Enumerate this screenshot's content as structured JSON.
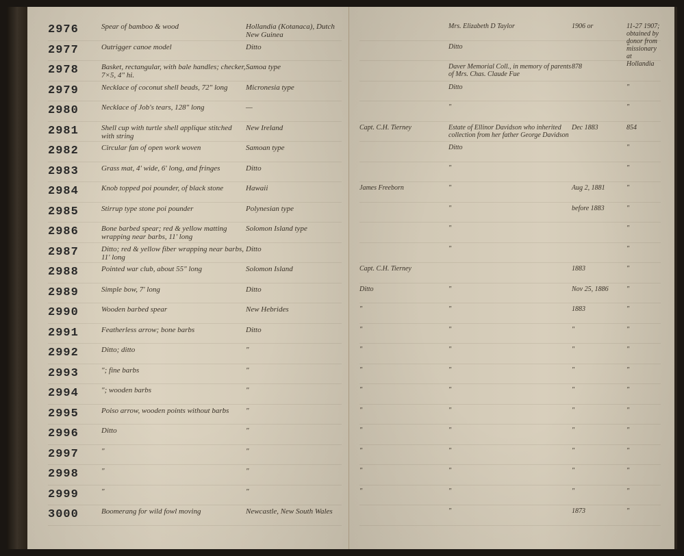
{
  "ledger": {
    "rows": [
      {
        "num": "2976",
        "desc": "Spear of bamboo & wood",
        "loc": "Hollandia (Kotanaca), Dutch New Guinea",
        "r1": "",
        "r2": "Mrs. Elizabeth D Taylor",
        "r3": "1906 or",
        "r4": "11-27 1907; obtained by donor from missionary at Hollandia"
      },
      {
        "num": "2977",
        "desc": "Outrigger canoe model",
        "loc": "Ditto",
        "r1": "",
        "r2": "Ditto",
        "r3": "",
        "r4": "\""
      },
      {
        "num": "2978",
        "desc": "Basket, rectangular, with bale handles; checker, 7×5, 4\" hi.",
        "loc": "Samoa type",
        "r1": "",
        "r2": "Daver Memorial Coll., in memory of parents of Mrs. Chas. Claude Fue",
        "r3": "878",
        "r4": ""
      },
      {
        "num": "2979",
        "desc": "Necklace of coconut shell beads, 72\" long",
        "loc": "Micronesia type",
        "r1": "",
        "r2": "Ditto",
        "r3": "",
        "r4": "\""
      },
      {
        "num": "2980",
        "desc": "Necklace of Job's tears, 128\" long",
        "loc": "—",
        "r1": "",
        "r2": "\"",
        "r3": "",
        "r4": "\""
      },
      {
        "num": "2981",
        "desc": "Shell cup with turtle shell applique stitched with string",
        "loc": "New Ireland",
        "r1": "Capt. C.H. Tierney",
        "r2": "Estate of Ellinor Davidson who inherited collection from her father George Davidson",
        "r3": "Dec 1883",
        "r4": "854"
      },
      {
        "num": "2982",
        "desc": "Circular fan of open work woven",
        "loc": "Samoan type",
        "r1": "",
        "r2": "Ditto",
        "r3": "",
        "r4": "\""
      },
      {
        "num": "2983",
        "desc": "Grass mat, 4' wide, 6' long, and fringes",
        "loc": "Ditto",
        "r1": "",
        "r2": "\"",
        "r3": "",
        "r4": "\""
      },
      {
        "num": "2984",
        "desc": "Knob topped poi pounder, of black stone",
        "loc": "Hawaii",
        "r1": "James Freeborn",
        "r2": "\"",
        "r3": "Aug 2, 1881",
        "r4": "\""
      },
      {
        "num": "2985",
        "desc": "Stirrup type stone poi pounder",
        "loc": "Polynesian type",
        "r1": "",
        "r2": "\"",
        "r3": "before 1883",
        "r4": "\""
      },
      {
        "num": "2986",
        "desc": "Bone barbed spear; red & yellow matting wrapping near barbs, 11' long",
        "loc": "Solomon Island type",
        "r1": "",
        "r2": "\"",
        "r3": "",
        "r4": "\""
      },
      {
        "num": "2987",
        "desc": "Ditto; red & yellow fiber wrapping near barbs, 11' long",
        "loc": "Ditto",
        "r1": "",
        "r2": "\"",
        "r3": "",
        "r4": "\""
      },
      {
        "num": "2988",
        "desc": "Pointed war club, about 55\" long",
        "loc": "Solomon Island",
        "r1": "Capt. C.H. Tierney",
        "r2": "",
        "r3": "1883",
        "r4": "\""
      },
      {
        "num": "2989",
        "desc": "Simple bow, 7' long",
        "loc": "Ditto",
        "r1": "Ditto",
        "r2": "\"",
        "r3": "Nov 25, 1886",
        "r4": "\""
      },
      {
        "num": "2990",
        "desc": "Wooden barbed spear",
        "loc": "New Hebrides",
        "r1": "\"",
        "r2": "\"",
        "r3": "1883",
        "r4": "\""
      },
      {
        "num": "2991",
        "desc": "Featherless arrow; bone barbs",
        "loc": "Ditto",
        "r1": "\"",
        "r2": "\"",
        "r3": "\"",
        "r4": "\""
      },
      {
        "num": "2992",
        "desc": "Ditto; ditto",
        "loc": "\"",
        "r1": "\"",
        "r2": "\"",
        "r3": "\"",
        "r4": "\""
      },
      {
        "num": "2993",
        "desc": "   \"; fine barbs",
        "loc": "\"",
        "r1": "\"",
        "r2": "\"",
        "r3": "\"",
        "r4": "\""
      },
      {
        "num": "2994",
        "desc": "   \"; wooden barbs",
        "loc": "\"",
        "r1": "\"",
        "r2": "\"",
        "r3": "\"",
        "r4": "\""
      },
      {
        "num": "2995",
        "desc": "Poiso arrow, wooden points without barbs",
        "loc": "\"",
        "r1": "\"",
        "r2": "\"",
        "r3": "\"",
        "r4": "\""
      },
      {
        "num": "2996",
        "desc": "Ditto",
        "loc": "\"",
        "r1": "\"",
        "r2": "\"",
        "r3": "\"",
        "r4": "\""
      },
      {
        "num": "2997",
        "desc": "   \"",
        "loc": "\"",
        "r1": "\"",
        "r2": "\"",
        "r3": "\"",
        "r4": "\""
      },
      {
        "num": "2998",
        "desc": "   \"",
        "loc": "\"",
        "r1": "\"",
        "r2": "\"",
        "r3": "\"",
        "r4": "\""
      },
      {
        "num": "2999",
        "desc": "   \"",
        "loc": "\"",
        "r1": "\"",
        "r2": "\"",
        "r3": "\"",
        "r4": "\""
      },
      {
        "num": "3000",
        "desc": "Boomerang for wild fowl moving",
        "loc": "Newcastle, New South Wales",
        "r1": "",
        "r2": "\"",
        "r3": "1873",
        "r4": "\""
      }
    ]
  },
  "style": {
    "page_bg": "#d4cbb8",
    "text_color": "#3a3228",
    "num_color": "#2a2a2a",
    "row_height": 29.5,
    "num_fontsize": 17,
    "script_fontsize": 11
  }
}
